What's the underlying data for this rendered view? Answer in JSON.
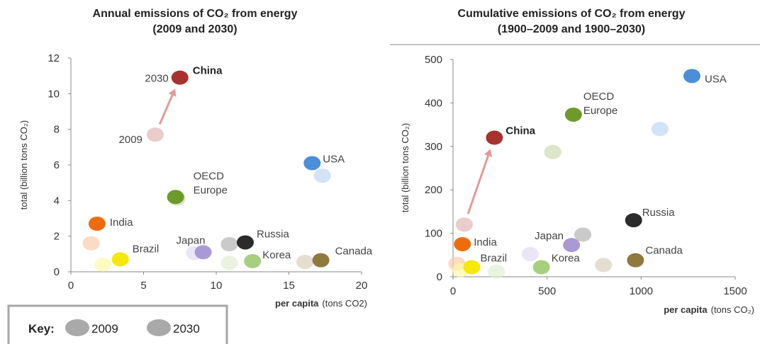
{
  "colors": {
    "China": "#a8322d",
    "USA": "#4a8fd8",
    "OECD Europe": "#6e9a2a",
    "India": "#ef6c0c",
    "Brazil": "#f6e80a",
    "Japan": "#a99ad6",
    "Russia": "#2b2b2b",
    "Korea": "#a8cf7e",
    "Canada": "#8f7a3d",
    "key": "#a9a9a9",
    "arrow": "#e39a9a"
  },
  "key": {
    "title": "Key:",
    "label_2009": "2009",
    "label_2030": "2030"
  },
  "chart_data": [
    {
      "type": "scatter",
      "title": [
        "Annual emissions of CO₂ from energy",
        "(2009 and 2030)"
      ],
      "xlabel": {
        "bold": "per capita",
        "rest": "(tons CO2)"
      },
      "ylabel": "total (billion tons CO₂)",
      "xlim": [
        0,
        20
      ],
      "ylim": [
        0,
        12
      ],
      "xticks": [
        0,
        5,
        10,
        15,
        20
      ],
      "yticks": [
        0,
        2,
        4,
        6,
        8,
        10,
        12
      ],
      "year_labels": [
        "2009",
        "2030"
      ],
      "series": [
        {
          "name": "China",
          "label_bold": true,
          "p2009": [
            5.8,
            7.7
          ],
          "p2030": [
            7.5,
            10.9
          ]
        },
        {
          "name": "USA",
          "p2009": [
            17.3,
            5.4
          ],
          "p2030": [
            16.6,
            6.1
          ]
        },
        {
          "name": "OECD Europe",
          "label_lines": [
            "OECD",
            "Europe"
          ],
          "p2009": [
            7.3,
            4.1
          ],
          "p2030": [
            7.2,
            4.2
          ]
        },
        {
          "name": "India",
          "p2009": [
            1.4,
            1.6
          ],
          "p2030": [
            1.8,
            2.7
          ]
        },
        {
          "name": "Brazil",
          "p2009": [
            2.2,
            0.4
          ],
          "p2030": [
            3.4,
            0.7
          ]
        },
        {
          "name": "Japan",
          "p2009": [
            8.5,
            1.05
          ],
          "p2030": [
            9.1,
            1.1
          ]
        },
        {
          "name": "Russia",
          "p2009": [
            10.9,
            1.55
          ],
          "p2030": [
            12.0,
            1.65
          ]
        },
        {
          "name": "Korea",
          "p2009": [
            10.9,
            0.5
          ],
          "p2030": [
            12.5,
            0.6
          ]
        },
        {
          "name": "Canada",
          "p2009": [
            16.1,
            0.55
          ],
          "p2030": [
            17.2,
            0.65
          ]
        }
      ]
    },
    {
      "type": "scatter",
      "title": [
        "Cumulative emissions of CO₂ from energy",
        "(1900–2009 and 1900–2030)"
      ],
      "xlabel": {
        "bold": "per capita",
        "rest": "(tons CO₂)"
      },
      "ylabel": "total (billion tons CO₂)",
      "xlim": [
        0,
        1500
      ],
      "ylim": [
        0,
        500
      ],
      "xticks": [
        0,
        500,
        1000,
        1500
      ],
      "yticks": [
        0,
        100,
        200,
        300,
        400,
        500
      ],
      "series": [
        {
          "name": "China",
          "label_bold": true,
          "p2009": [
            60,
            120
          ],
          "p2030": [
            220,
            320
          ]
        },
        {
          "name": "USA",
          "p2009": [
            1100,
            340
          ],
          "p2030": [
            1270,
            462
          ]
        },
        {
          "name": "OECD Europe",
          "label_lines": [
            "OECD",
            "Europe"
          ],
          "p2009": [
            530,
            287
          ],
          "p2030": [
            640,
            373
          ]
        },
        {
          "name": "India",
          "p2009": [
            20,
            30
          ],
          "p2030": [
            50,
            75
          ]
        },
        {
          "name": "Brazil",
          "p2009": [
            40,
            15
          ],
          "p2030": [
            100,
            22
          ]
        },
        {
          "name": "Japan",
          "p2009": [
            410,
            52
          ],
          "p2030": [
            630,
            73
          ]
        },
        {
          "name": "Russia",
          "p2009": [
            690,
            97
          ],
          "p2030": [
            960,
            130
          ]
        },
        {
          "name": "Korea",
          "p2009": [
            230,
            12
          ],
          "p2030": [
            470,
            22
          ]
        },
        {
          "name": "Canada",
          "p2009": [
            800,
            27
          ],
          "p2030": [
            970,
            38
          ]
        }
      ]
    }
  ]
}
